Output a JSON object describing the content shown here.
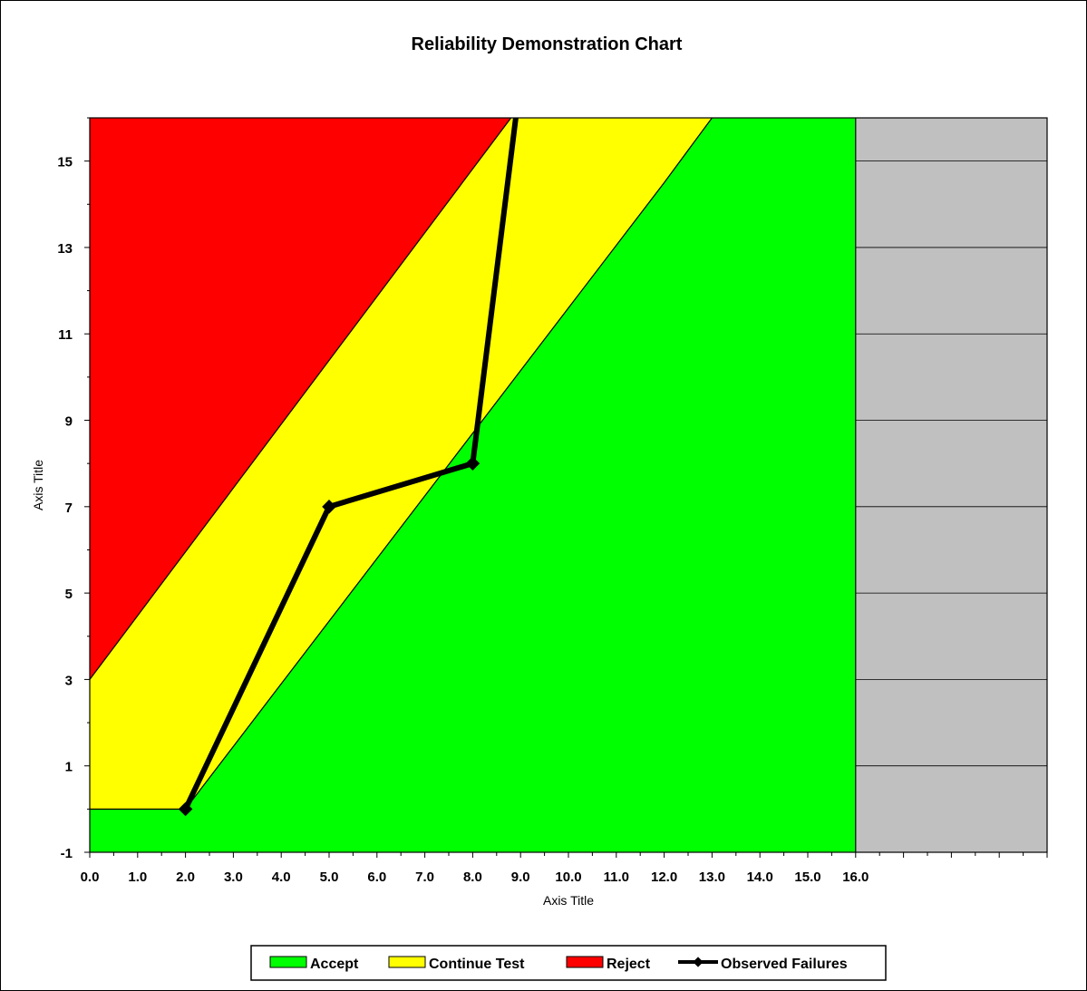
{
  "chart_data": {
    "type": "area",
    "title": "Reliability Demonstration Chart",
    "xlabel": "Axis Title",
    "ylabel": "Axis Title",
    "xlim": [
      0,
      20
    ],
    "ylim": [
      -1,
      16
    ],
    "x_tick_labels": [
      "0.0",
      "1.0",
      "2.0",
      "3.0",
      "4.0",
      "5.0",
      "6.0",
      "7.0",
      "8.0",
      "9.0",
      "10.0",
      "11.0",
      "12.0",
      "13.0",
      "14.0",
      "15.0",
      "16.0"
    ],
    "y_ticks": [
      -1,
      1,
      3,
      5,
      7,
      9,
      11,
      13,
      15
    ],
    "regions": [
      {
        "name": "Accept",
        "color": "#00FF00"
      },
      {
        "name": "Continue Test",
        "color": "#FFFF00"
      },
      {
        "name": "Reject",
        "color": "#FF0000"
      },
      {
        "name": "Truncated",
        "color": "#C0C0C0",
        "x_from": 16.0
      }
    ],
    "boundaries": {
      "reject_line": [
        [
          0,
          3
        ],
        [
          8.8,
          16
        ]
      ],
      "accept_line": [
        [
          0,
          0
        ],
        [
          2.0,
          0
        ],
        [
          12.0,
          14.5
        ],
        [
          13.0,
          16
        ]
      ],
      "truncation_x": 16.0
    },
    "series": [
      {
        "name": "Observed Failures",
        "color": "#000000",
        "x": [
          2.0,
          5.0,
          8.0,
          8.9
        ],
        "y": [
          0,
          7,
          8,
          16
        ]
      }
    ],
    "grid": "horizontal lines in truncated region only",
    "legend": "bottom"
  },
  "legend": {
    "items": [
      "Accept",
      "Continue Test",
      "Reject",
      "Observed Failures"
    ]
  }
}
